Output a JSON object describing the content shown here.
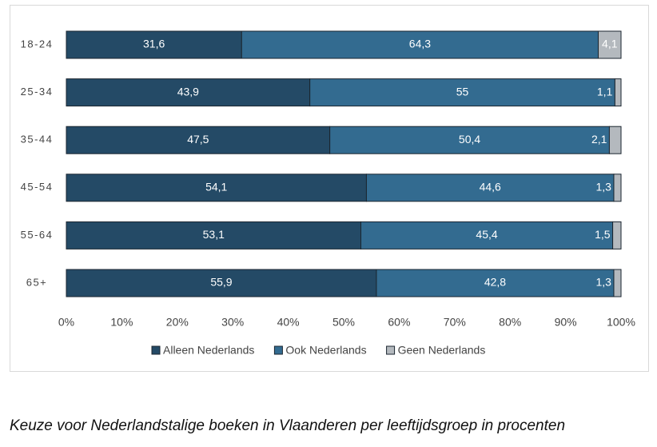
{
  "chart_data": {
    "type": "stacked-bar-horizontal",
    "caption": "Keuze voor Nederlandstalige boeken in Vlaanderen per leeftijdsgroep in procenten",
    "categories": [
      "18-24",
      "25-34",
      "35-44",
      "45-54",
      "55-64",
      "65+"
    ],
    "series": [
      {
        "name": "Alleen Nederlands",
        "color": "#244a66",
        "values": [
          31.6,
          43.9,
          47.5,
          54.1,
          53.1,
          55.9
        ],
        "value_labels": [
          "31,6",
          "43,9",
          "47,5",
          "54,1",
          "53,1",
          "55,9"
        ]
      },
      {
        "name": "Ook Nederlands",
        "color": "#336b90",
        "values": [
          64.3,
          55,
          50.4,
          44.6,
          45.4,
          42.8
        ],
        "value_labels": [
          "64,3",
          "55",
          "50,4",
          "44,6",
          "45,4",
          "42,8"
        ]
      },
      {
        "name": "Geen Nederlands",
        "color": "#b4b9be",
        "values": [
          4.1,
          1.1,
          2.1,
          1.3,
          1.5,
          1.3
        ],
        "value_labels": [
          "4,1",
          "1,1",
          "2,1",
          "1,3",
          "1,5",
          "1,3"
        ]
      }
    ],
    "xlim": [
      0,
      100
    ],
    "xticks": [
      {
        "value": 0,
        "label": "0%"
      },
      {
        "value": 10,
        "label": "10%"
      },
      {
        "value": 20,
        "label": "20%"
      },
      {
        "value": 30,
        "label": "30%"
      },
      {
        "value": 40,
        "label": "40%"
      },
      {
        "value": 50,
        "label": "50%"
      },
      {
        "value": 60,
        "label": "60%"
      },
      {
        "value": 70,
        "label": "70%"
      },
      {
        "value": 80,
        "label": "80%"
      },
      {
        "value": 90,
        "label": "90%"
      },
      {
        "value": 100,
        "label": "100%"
      }
    ],
    "legend": "bottom"
  }
}
